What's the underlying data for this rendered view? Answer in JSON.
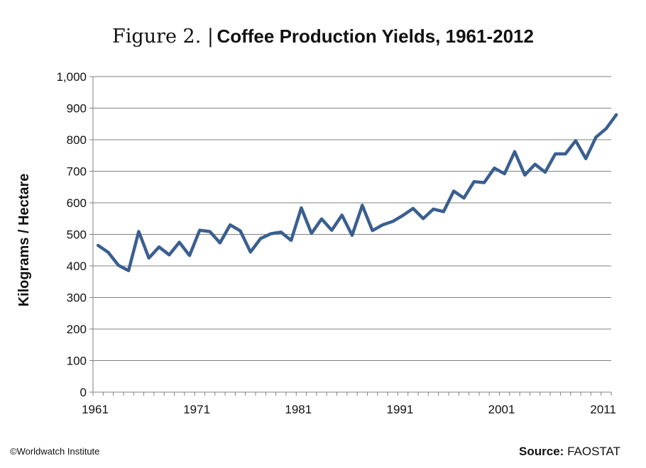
{
  "title": {
    "prefix": "Figure 2. |",
    "main": "Coffee Production Yields, 1961-2012"
  },
  "chart_data": {
    "type": "line",
    "title": "Coffee Production Yields, 1961-2012",
    "ylabel": "Kilograms / Hectare",
    "xlabel": "",
    "ylim": [
      0,
      1000
    ],
    "xlim": [
      1961,
      2012
    ],
    "yticks": [
      0,
      100,
      200,
      300,
      400,
      500,
      600,
      700,
      800,
      900,
      1000
    ],
    "ytick_labels": [
      "0",
      "100",
      "200",
      "300",
      "400",
      "500",
      "600",
      "700",
      "800",
      "900",
      "1,000"
    ],
    "xticks": [
      1961,
      1971,
      1981,
      1991,
      2001,
      2011
    ],
    "xtick_labels": [
      "1961",
      "1971",
      "1981",
      "1991",
      "2001",
      "2011"
    ],
    "grid": "horizontal",
    "line_color": "#3a5f8f",
    "series": [
      {
        "x": [
          1961,
          1962,
          1963,
          1964,
          1965,
          1966,
          1967,
          1968,
          1969,
          1970,
          1971,
          1972,
          1973,
          1974,
          1975,
          1976,
          1977,
          1978,
          1979,
          1980,
          1981,
          1982,
          1983,
          1984,
          1985,
          1986,
          1987,
          1988,
          1989,
          1990,
          1991,
          1992,
          1993,
          1994,
          1995,
          1996,
          1997,
          1998,
          1999,
          2000,
          2001,
          2002,
          2003,
          2004,
          2005,
          2006,
          2007,
          2008,
          2009,
          2010,
          2011,
          2012
        ],
        "values": [
          465,
          443,
          402,
          385,
          509,
          425,
          460,
          435,
          475,
          433,
          513,
          509,
          473,
          530,
          511,
          444,
          487,
          502,
          507,
          481,
          584,
          503,
          549,
          513,
          561,
          497,
          592,
          512,
          530,
          541,
          560,
          582,
          550,
          580,
          572,
          637,
          615,
          667,
          664,
          710,
          692,
          762,
          688,
          722,
          697,
          755,
          755,
          797,
          740,
          808,
          835,
          879
        ]
      }
    ]
  },
  "footer": {
    "copyright": "©Worldwatch Institute",
    "source_label": "Source:",
    "source_value": "FAOSTAT"
  }
}
